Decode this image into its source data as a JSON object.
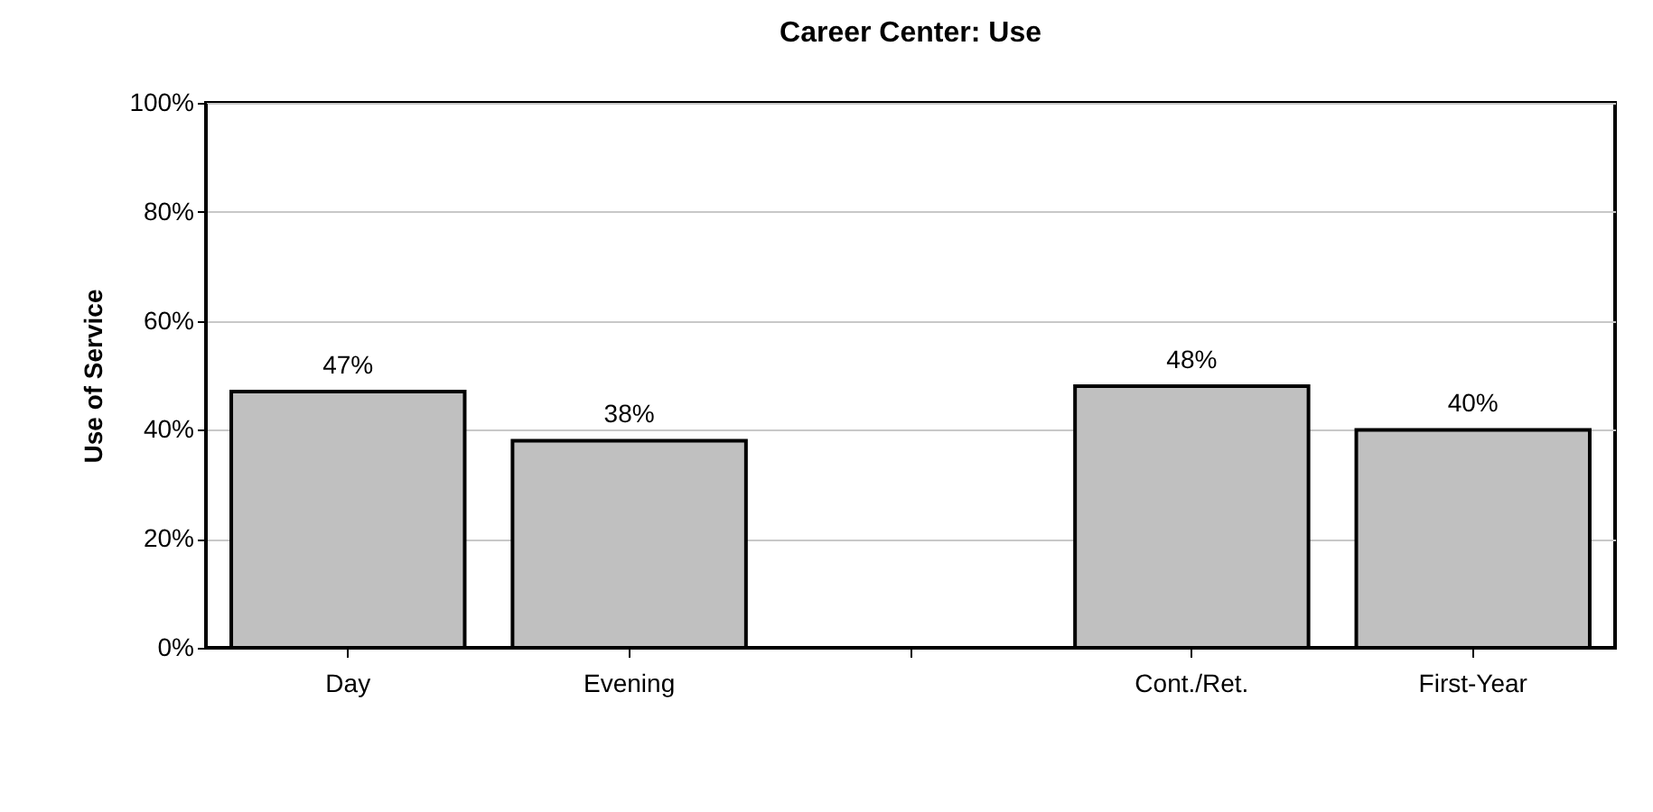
{
  "chart_data": {
    "type": "bar",
    "title": "Career Center: Use",
    "ylabel": "Use of Service",
    "categories": [
      "Day",
      "Evening",
      null,
      "Cont./Ret.",
      "First-Year"
    ],
    "values": [
      47,
      38,
      null,
      48,
      40
    ],
    "value_labels": [
      "47%",
      "38%",
      null,
      "48%",
      "40%"
    ],
    "color": "#c0c0c0",
    "ylim": [
      0,
      100
    ],
    "yticks": [
      {
        "value": 0,
        "label": "0%"
      },
      {
        "value": 20,
        "label": "20%"
      },
      {
        "value": 40,
        "label": "40%"
      },
      {
        "value": 60,
        "label": "60%"
      },
      {
        "value": 80,
        "label": "80%"
      },
      {
        "value": 100,
        "label": "100%"
      }
    ],
    "grid": "y"
  }
}
